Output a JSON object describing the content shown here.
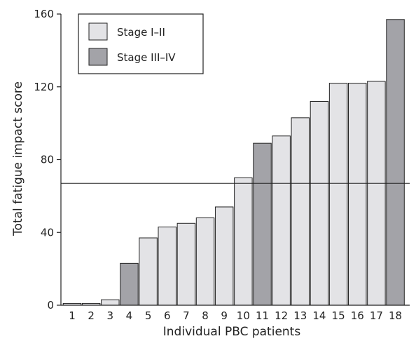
{
  "chart_data": {
    "type": "bar",
    "categories": [
      "1",
      "2",
      "3",
      "4",
      "5",
      "6",
      "7",
      "8",
      "9",
      "10",
      "11",
      "12",
      "13",
      "14",
      "15",
      "16",
      "17",
      "18"
    ],
    "values": [
      1,
      1,
      3,
      23,
      37,
      43,
      45,
      48,
      54,
      70,
      89,
      93,
      103,
      112,
      122,
      122,
      123,
      157
    ],
    "stage": [
      "I-II",
      "I-II",
      "I-II",
      "III-IV",
      "I-II",
      "I-II",
      "I-II",
      "I-II",
      "I-II",
      "I-II",
      "III-IV",
      "I-II",
      "I-II",
      "I-II",
      "I-II",
      "I-II",
      "I-II",
      "III-IV"
    ],
    "reference_line": 67,
    "xlabel": "Individual PBC patients",
    "ylabel": "Total fatigue impact score",
    "ylim": [
      0,
      160
    ],
    "yticks": [
      0,
      40,
      80,
      120,
      160
    ],
    "grid": false,
    "legend_position": "top-left",
    "series": [
      {
        "key": "I-II",
        "name": "Stage I–II",
        "color": "#e3e3e6"
      },
      {
        "key": "III-IV",
        "name": "Stage III–IV",
        "color": "#a3a3a8"
      }
    ]
  }
}
